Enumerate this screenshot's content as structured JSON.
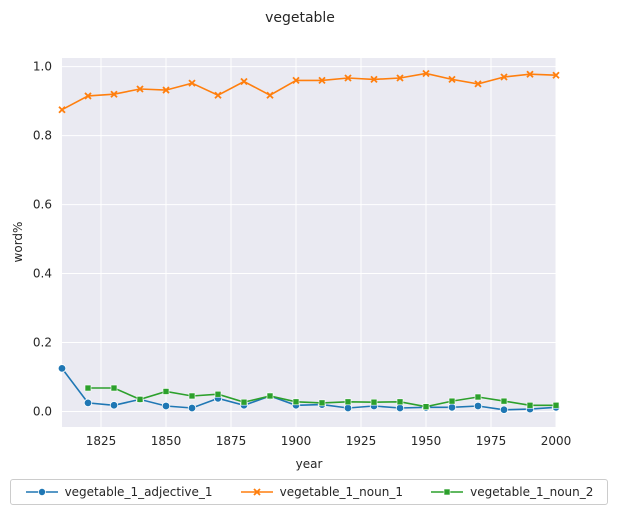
{
  "chart_data": {
    "type": "line",
    "title": "vegetable",
    "xlabel": "year",
    "ylabel": "word%",
    "xlim": [
      1810,
      2000
    ],
    "ylim": [
      -0.045,
      1.025
    ],
    "xticks": [
      1825,
      1850,
      1875,
      1900,
      1925,
      1950,
      1975,
      2000
    ],
    "yticks": [
      0.0,
      0.2,
      0.4,
      0.6,
      0.8,
      1.0
    ],
    "grid": true,
    "legend_position": "bottom",
    "series": [
      {
        "name": "vegetable_1_adjective_1",
        "color": "#1f77b4",
        "marker": "circle",
        "x": [
          1810,
          1820,
          1830,
          1840,
          1850,
          1860,
          1870,
          1880,
          1890,
          1900,
          1910,
          1920,
          1930,
          1940,
          1950,
          1960,
          1970,
          1980,
          1990,
          2000
        ],
        "y": [
          0.125,
          0.025,
          0.018,
          0.035,
          0.016,
          0.01,
          0.038,
          0.018,
          0.045,
          0.018,
          0.02,
          0.01,
          0.016,
          0.01,
          0.012,
          0.012,
          0.016,
          0.005,
          0.007,
          0.012
        ]
      },
      {
        "name": "vegetable_1_noun_1",
        "color": "#ff7f0e",
        "marker": "x",
        "x": [
          1810,
          1820,
          1830,
          1840,
          1850,
          1860,
          1870,
          1880,
          1890,
          1900,
          1910,
          1920,
          1930,
          1940,
          1950,
          1960,
          1970,
          1980,
          1990,
          2000
        ],
        "y": [
          0.875,
          0.915,
          0.92,
          0.935,
          0.932,
          0.952,
          0.917,
          0.957,
          0.917,
          0.96,
          0.96,
          0.967,
          0.963,
          0.967,
          0.98,
          0.963,
          0.95,
          0.97,
          0.978,
          0.975
        ]
      },
      {
        "name": "vegetable_1_noun_2",
        "color": "#2ca02c",
        "marker": "square",
        "x": [
          1820,
          1830,
          1840,
          1850,
          1860,
          1870,
          1880,
          1890,
          1900,
          1910,
          1920,
          1930,
          1940,
          1950,
          1960,
          1970,
          1980,
          1990,
          2000
        ],
        "y": [
          0.068,
          0.068,
          0.035,
          0.058,
          0.045,
          0.05,
          0.027,
          0.045,
          0.028,
          0.025,
          0.028,
          0.027,
          0.028,
          0.014,
          0.03,
          0.042,
          0.03,
          0.018,
          0.018
        ]
      }
    ]
  }
}
